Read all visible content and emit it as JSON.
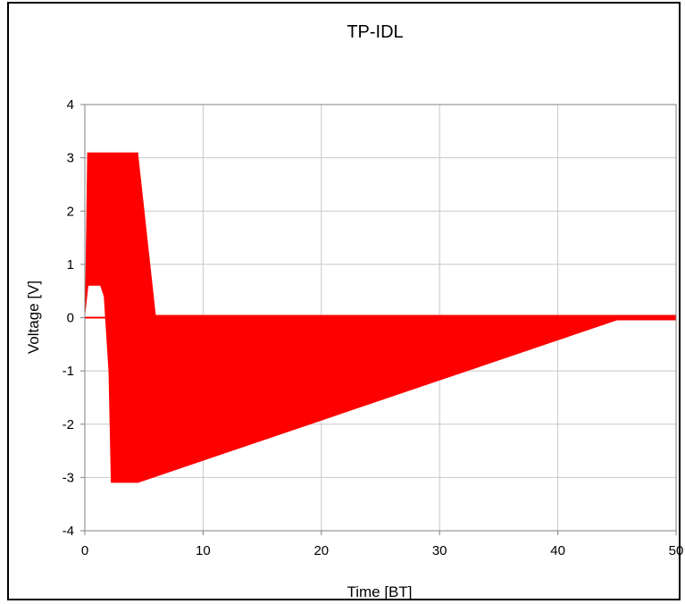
{
  "chart_data": {
    "type": "area",
    "title": "TP-IDL",
    "xlabel": "Time [BT]",
    "ylabel": "Voltage [V]",
    "xlim": [
      0,
      50
    ],
    "ylim": [
      -4,
      4
    ],
    "xticks": [
      0,
      10,
      20,
      30,
      40,
      50
    ],
    "yticks": [
      4,
      3,
      2,
      1,
      0,
      -1,
      -2,
      -3,
      -4
    ],
    "grid": true,
    "legend": "none",
    "series": [
      {
        "fill_color": "#ff0000",
        "upper_envelope": {
          "x": [
            0,
            0.1,
            0.2,
            4.5,
            6.0,
            50
          ],
          "y": [
            0,
            1.5,
            3.1,
            3.1,
            0.05,
            0.05
          ]
        },
        "lower_envelope": {
          "x": [
            0,
            0.3,
            1.3,
            1.6,
            2.0,
            2.2,
            4.5,
            45.0,
            50
          ],
          "y": [
            0,
            0.6,
            0.6,
            0.4,
            -1.0,
            -3.1,
            -3.1,
            -0.05,
            -0.05
          ]
        }
      }
    ]
  }
}
